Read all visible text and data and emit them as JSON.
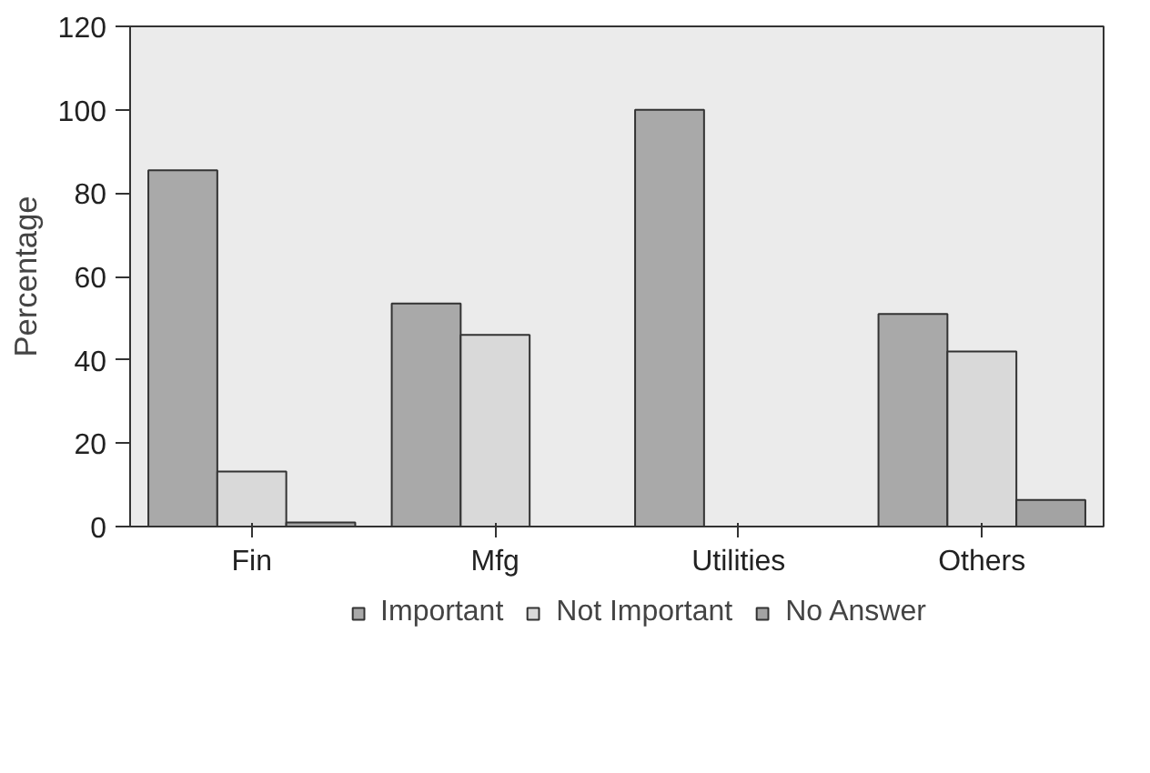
{
  "chart_data": {
    "type": "bar",
    "ylabel": "Percentage",
    "categories": [
      "Fin",
      "Mfg",
      "Utilities",
      "Others"
    ],
    "series": [
      {
        "name": "Important",
        "color": "#a9a9a9",
        "values": [
          85.5,
          53.5,
          100,
          51
        ]
      },
      {
        "name": "Not Important",
        "color": "#d9d9d9",
        "values": [
          13.2,
          46,
          0,
          42
        ]
      },
      {
        "name": "No Answer",
        "color": "#a3a3a3",
        "values": [
          1,
          0,
          0,
          6.4
        ]
      }
    ],
    "ylim": [
      0,
      120
    ],
    "yticks": [
      0,
      20,
      40,
      60,
      80,
      100,
      120
    ],
    "grid": false,
    "legend": "bottom"
  }
}
